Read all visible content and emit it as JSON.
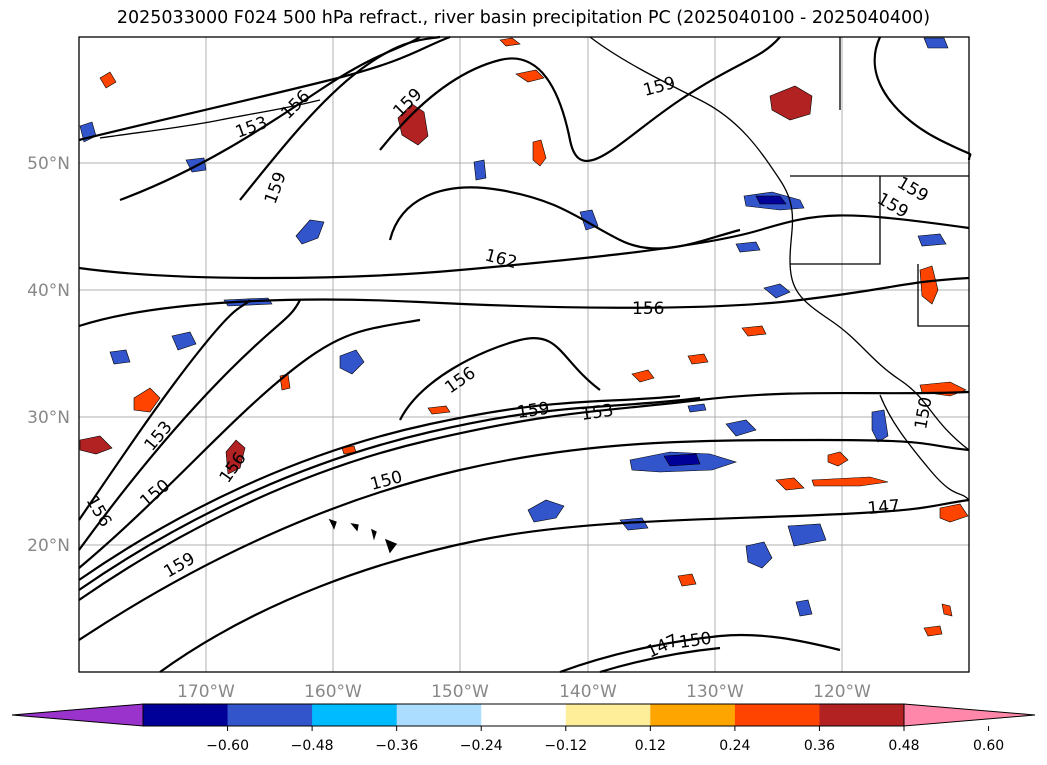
{
  "title": "2025033000 F024 500 hPa refract., river basin precipitation PC (2025040100 - 2025040400)",
  "lat_labels": [
    "50°N",
    "40°N",
    "30°N",
    "20°N"
  ],
  "lon_labels": [
    "170°W",
    "160°W",
    "150°W",
    "140°W",
    "130°W",
    "120°W"
  ],
  "contour_labels": [
    {
      "text": "153",
      "name": "contour-label-153-north"
    },
    {
      "text": "156",
      "name": "contour-label-156-north-west"
    },
    {
      "text": "159",
      "name": "contour-label-159-north"
    },
    {
      "text": "159",
      "name": "contour-label-159-west"
    },
    {
      "text": "162",
      "name": "contour-label-162"
    },
    {
      "text": "156",
      "name": "contour-label-156-center"
    },
    {
      "text": "156",
      "name": "contour-label-156-mid"
    },
    {
      "text": "159",
      "name": "contour-label-159-jet"
    },
    {
      "text": "153",
      "name": "contour-label-153-jet"
    },
    {
      "text": "150",
      "name": "contour-label-150-south"
    },
    {
      "text": "147",
      "name": "contour-label-147"
    },
    {
      "text": "150",
      "name": "contour-label-150-bottom"
    },
    {
      "text": "147",
      "name": "contour-label-147-bottom"
    },
    {
      "text": "153",
      "name": "contour-label-153-west"
    },
    {
      "text": "150",
      "name": "contour-label-150-west"
    },
    {
      "text": "156",
      "name": "contour-label-156-west-low"
    },
    {
      "text": "156",
      "name": "contour-label-156-west"
    },
    {
      "text": "159",
      "name": "contour-label-159-southwest"
    },
    {
      "text": "159",
      "name": "contour-label-159-coast"
    },
    {
      "text": "159",
      "name": "contour-label-159-coast-2"
    },
    {
      "text": "150",
      "name": "contour-label-150-coast"
    },
    {
      "text": "159",
      "name": "contour-label-159-gulf"
    }
  ],
  "colorbar": {
    "tick_labels": [
      "−0.60",
      "−0.48",
      "−0.36",
      "−0.24",
      "−0.12",
      "0.12",
      "0.24",
      "0.36",
      "0.48",
      "0.60"
    ],
    "colors": [
      "#9933cc",
      "#000099",
      "#3355cc",
      "#00bbff",
      "#aaddff",
      "#ffffff",
      "#ffee99",
      "#ffa500",
      "#ff4400",
      "#b22222",
      "#ff88aa"
    ]
  }
}
